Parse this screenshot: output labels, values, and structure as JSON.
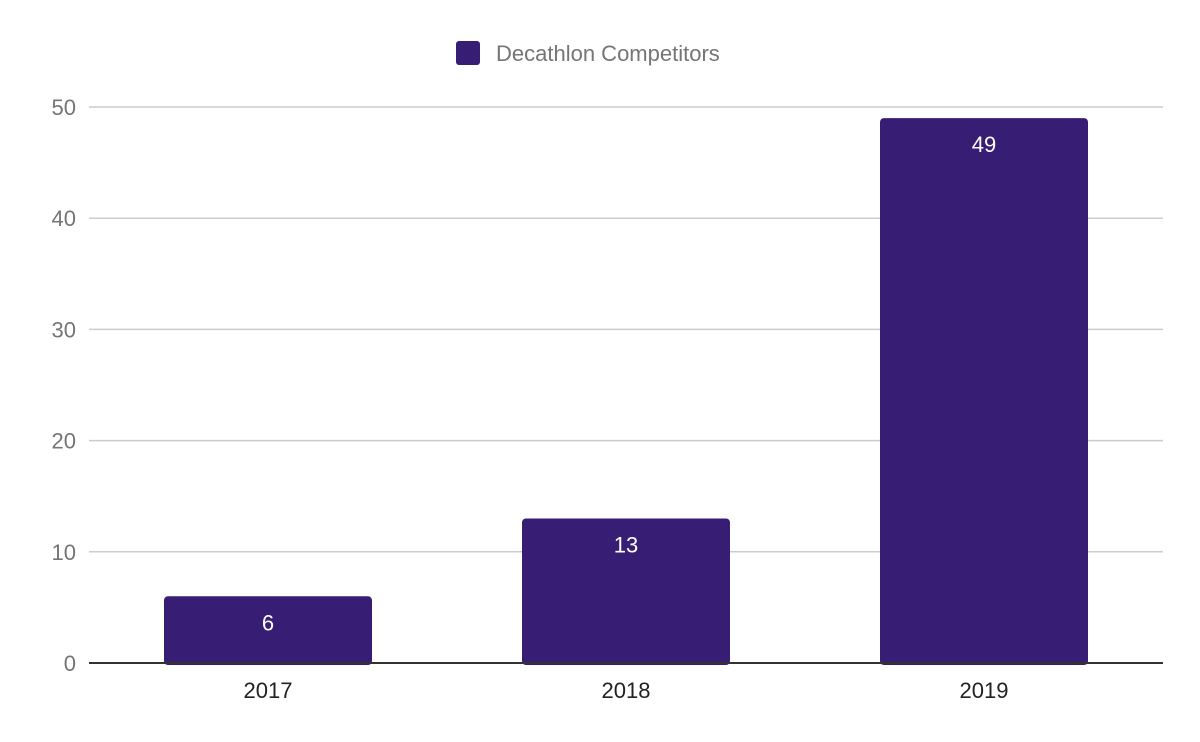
{
  "chart_data": {
    "type": "bar",
    "title": "",
    "xlabel": "",
    "ylabel": "",
    "categories": [
      "2017",
      "2018",
      "2019"
    ],
    "series": [
      {
        "name": "Decathlon Competitors",
        "values": [
          6,
          13,
          49
        ],
        "color": "#371d74"
      }
    ],
    "ylim": [
      0,
      50
    ],
    "yticks": [
      0,
      10,
      20,
      30,
      40,
      50
    ],
    "data_labels": true,
    "grid": true,
    "legend": "top-center"
  }
}
